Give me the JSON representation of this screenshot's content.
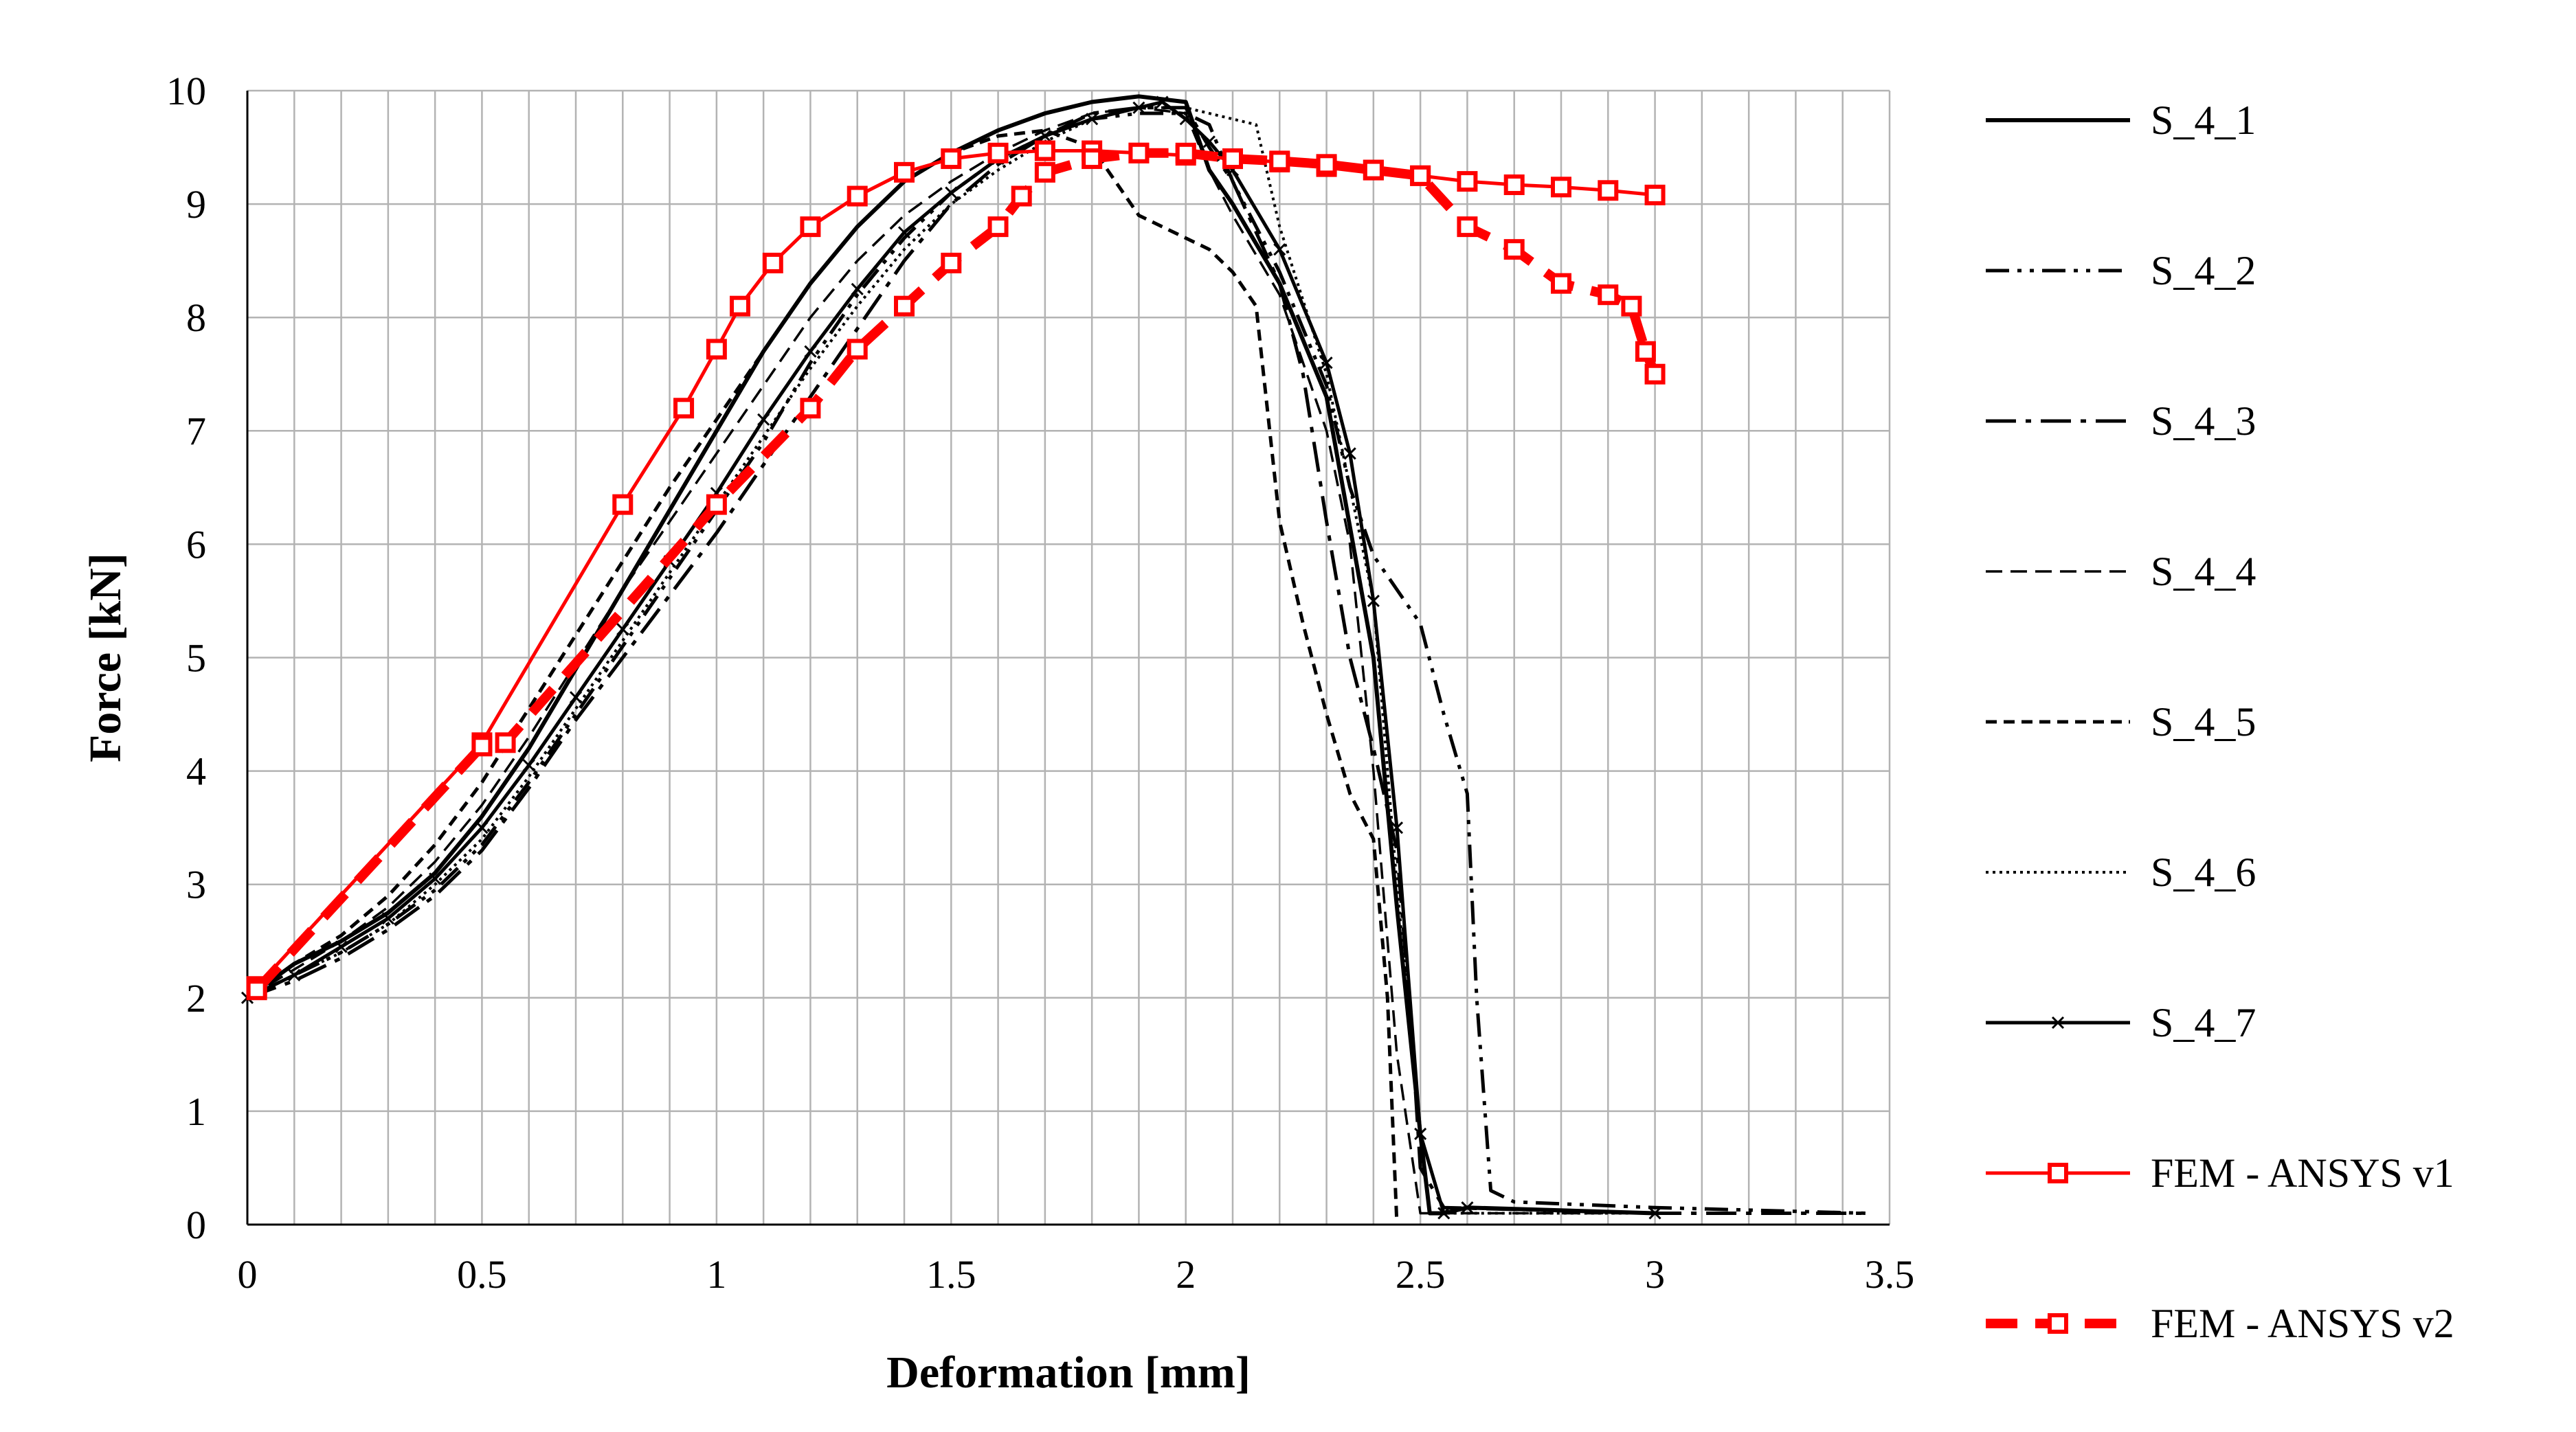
{
  "chart_data": {
    "type": "line",
    "title": "",
    "xlabel": "Deformation [mm]",
    "ylabel": "Force [kN]",
    "xlim": [
      0,
      3.5
    ],
    "ylim": [
      0,
      10
    ],
    "x_ticks": [
      0,
      0.5,
      1,
      1.5,
      2,
      2.5,
      3,
      3.5
    ],
    "x_tick_labels": [
      "0",
      "0.5",
      "1",
      "1.5",
      "2",
      "2.5",
      "3",
      "3.5"
    ],
    "y_ticks": [
      0,
      1,
      2,
      3,
      4,
      5,
      6,
      7,
      8,
      9,
      10
    ],
    "y_tick_labels": [
      "0",
      "1",
      "2",
      "3",
      "4",
      "5",
      "6",
      "7",
      "8",
      "9",
      "10"
    ],
    "grid": true,
    "minor_x_grid_step": 0.1,
    "legend_position": "right",
    "series": [
      {
        "name": "S_4_1",
        "color": "#000000",
        "style": "solid",
        "marker": "none",
        "x": [
          0,
          0.1,
          0.2,
          0.3,
          0.4,
          0.5,
          0.6,
          0.7,
          0.8,
          0.9,
          1.0,
          1.1,
          1.2,
          1.3,
          1.4,
          1.5,
          1.6,
          1.7,
          1.8,
          1.9,
          2.0,
          2.05,
          2.1,
          2.2,
          2.3,
          2.4,
          2.45,
          2.5,
          2.52,
          2.55,
          2.6,
          3.0
        ],
        "y": [
          2.0,
          2.3,
          2.5,
          2.75,
          3.1,
          3.6,
          4.2,
          4.9,
          5.6,
          6.3,
          7.0,
          7.7,
          8.3,
          8.8,
          9.2,
          9.45,
          9.65,
          9.8,
          9.9,
          9.95,
          9.9,
          9.3,
          9.0,
          8.3,
          7.3,
          5.0,
          2.8,
          0.8,
          0.1,
          0.1,
          0.15,
          0.1
        ]
      },
      {
        "name": "S_4_2",
        "color": "#000000",
        "style": "dash-dot-dot",
        "marker": "none",
        "x": [
          0,
          0.1,
          0.2,
          0.3,
          0.4,
          0.5,
          0.6,
          0.7,
          0.8,
          0.9,
          1.0,
          1.1,
          1.2,
          1.3,
          1.4,
          1.5,
          1.6,
          1.7,
          1.8,
          1.9,
          2.0,
          2.05,
          2.1,
          2.2,
          2.3,
          2.35,
          2.4,
          2.5,
          2.55,
          2.6,
          2.62,
          2.65,
          2.7,
          3.0,
          3.45
        ],
        "y": [
          2.0,
          2.2,
          2.4,
          2.65,
          2.95,
          3.35,
          3.9,
          4.5,
          5.1,
          5.7,
          6.3,
          6.9,
          7.6,
          8.2,
          8.7,
          9.1,
          9.4,
          9.6,
          9.75,
          9.8,
          9.8,
          9.7,
          9.2,
          8.4,
          7.4,
          6.5,
          5.9,
          5.3,
          4.5,
          3.8,
          2.0,
          0.3,
          0.2,
          0.15,
          0.1
        ]
      },
      {
        "name": "S_4_3",
        "color": "#000000",
        "style": "dash-dot",
        "marker": "none",
        "x": [
          0,
          0.1,
          0.2,
          0.3,
          0.4,
          0.5,
          0.6,
          0.7,
          0.8,
          0.9,
          1.0,
          1.1,
          1.2,
          1.3,
          1.4,
          1.5,
          1.6,
          1.7,
          1.8,
          1.9,
          2.0,
          2.05,
          2.1,
          2.2,
          2.25,
          2.3,
          2.35,
          2.4,
          2.45,
          2.48,
          2.5,
          2.55,
          3.0,
          3.45
        ],
        "y": [
          2.0,
          2.15,
          2.35,
          2.6,
          2.9,
          3.3,
          3.85,
          4.45,
          5.0,
          5.55,
          6.1,
          6.7,
          7.3,
          7.9,
          8.5,
          9.0,
          9.35,
          9.6,
          9.8,
          9.85,
          9.85,
          9.5,
          9.2,
          8.3,
          7.5,
          6.2,
          5.0,
          4.2,
          3.3,
          1.8,
          0.5,
          0.15,
          0.1,
          0.1
        ]
      },
      {
        "name": "S_4_4",
        "color": "#000000",
        "style": "dash",
        "marker": "none",
        "x": [
          0,
          0.1,
          0.2,
          0.3,
          0.4,
          0.5,
          0.6,
          0.7,
          0.8,
          0.9,
          1.0,
          1.1,
          1.2,
          1.3,
          1.4,
          1.5,
          1.6,
          1.7,
          1.8,
          1.9,
          2.0,
          2.05,
          2.1,
          2.2,
          2.3,
          2.35,
          2.4,
          2.45,
          2.5,
          3.0
        ],
        "y": [
          2.0,
          2.25,
          2.5,
          2.8,
          3.2,
          3.7,
          4.3,
          4.95,
          5.6,
          6.2,
          6.8,
          7.4,
          8.0,
          8.5,
          8.9,
          9.2,
          9.45,
          9.65,
          9.8,
          9.85,
          9.8,
          9.3,
          8.9,
          8.2,
          7.0,
          6.0,
          4.0,
          1.5,
          0.1,
          0.1
        ]
      },
      {
        "name": "S_4_5",
        "color": "#000000",
        "style": "short-dash",
        "marker": "none",
        "x": [
          0,
          0.1,
          0.2,
          0.3,
          0.4,
          0.5,
          0.6,
          0.7,
          0.8,
          0.9,
          1.0,
          1.1,
          1.2,
          1.3,
          1.4,
          1.5,
          1.6,
          1.7,
          1.8,
          1.85,
          1.9,
          2.0,
          2.05,
          2.1,
          2.15,
          2.2,
          2.25,
          2.3,
          2.35,
          2.4,
          2.43,
          2.45
        ],
        "y": [
          2.0,
          2.3,
          2.55,
          2.9,
          3.35,
          3.9,
          4.55,
          5.2,
          5.85,
          6.5,
          7.1,
          7.7,
          8.3,
          8.8,
          9.2,
          9.45,
          9.6,
          9.65,
          9.5,
          9.2,
          8.9,
          8.7,
          8.6,
          8.4,
          8.1,
          6.2,
          5.3,
          4.5,
          3.8,
          3.4,
          2.0,
          0.0
        ]
      },
      {
        "name": "S_4_6",
        "color": "#000000",
        "style": "dot",
        "marker": "none",
        "x": [
          0,
          0.1,
          0.2,
          0.3,
          0.4,
          0.5,
          0.6,
          0.7,
          0.8,
          0.9,
          1.0,
          1.1,
          1.2,
          1.3,
          1.4,
          1.5,
          1.6,
          1.7,
          1.8,
          1.9,
          2.0,
          2.1,
          2.15,
          2.2,
          2.3,
          2.4,
          2.45,
          2.5,
          2.55,
          3.0
        ],
        "y": [
          2.0,
          2.2,
          2.4,
          2.65,
          3.0,
          3.4,
          3.95,
          4.55,
          5.15,
          5.75,
          6.35,
          6.95,
          7.55,
          8.1,
          8.6,
          9.0,
          9.3,
          9.55,
          9.75,
          9.85,
          9.85,
          9.75,
          9.7,
          8.8,
          7.5,
          5.5,
          3.0,
          0.8,
          0.1,
          0.1
        ]
      },
      {
        "name": "S_4_7",
        "color": "#000000",
        "style": "solid-x",
        "marker": "x",
        "x": [
          0,
          0.1,
          0.2,
          0.3,
          0.4,
          0.5,
          0.6,
          0.7,
          0.8,
          0.9,
          1.0,
          1.1,
          1.2,
          1.3,
          1.4,
          1.5,
          1.6,
          1.7,
          1.8,
          1.9,
          1.95,
          2.0,
          2.05,
          2.1,
          2.2,
          2.3,
          2.35,
          2.4,
          2.45,
          2.5,
          2.55,
          2.6,
          3.0
        ],
        "y": [
          2.0,
          2.2,
          2.45,
          2.7,
          3.05,
          3.5,
          4.05,
          4.65,
          5.25,
          5.85,
          6.45,
          7.1,
          7.7,
          8.25,
          8.75,
          9.1,
          9.4,
          9.6,
          9.75,
          9.85,
          9.9,
          9.75,
          9.55,
          9.3,
          8.6,
          7.6,
          6.8,
          5.5,
          3.5,
          0.8,
          0.1,
          0.15,
          0.1
        ]
      },
      {
        "name": "FEM - ANSYS v1",
        "color": "#ff0000",
        "style": "solid",
        "marker": "square",
        "x": [
          0.02,
          0.5,
          0.8,
          0.93,
          1.0,
          1.05,
          1.12,
          1.2,
          1.3,
          1.4,
          1.5,
          1.6,
          1.7,
          1.8,
          1.9,
          2.0,
          2.1,
          2.2,
          2.3,
          2.4,
          2.5,
          2.6,
          2.7,
          2.8,
          2.9,
          3.0
        ],
        "y": [
          2.1,
          4.25,
          6.35,
          7.2,
          7.72,
          8.1,
          8.48,
          8.8,
          9.07,
          9.28,
          9.4,
          9.45,
          9.47,
          9.47,
          9.45,
          9.43,
          9.4,
          9.37,
          9.33,
          9.3,
          9.25,
          9.2,
          9.17,
          9.15,
          9.12,
          9.08
        ]
      },
      {
        "name": "FEM - ANSYS v2",
        "color": "#ff0000",
        "style": "thick-dash",
        "marker": "square",
        "x": [
          0.02,
          0.5,
          0.55,
          1.0,
          1.2,
          1.3,
          1.4,
          1.5,
          1.6,
          1.65,
          1.7,
          1.8,
          1.9,
          2.0,
          2.1,
          2.2,
          2.3,
          2.4,
          2.5,
          2.6,
          2.7,
          2.8,
          2.9,
          2.95,
          2.98,
          3.0
        ],
        "y": [
          2.07,
          4.22,
          4.25,
          6.35,
          7.2,
          7.72,
          8.1,
          8.48,
          8.8,
          9.07,
          9.28,
          9.4,
          9.45,
          9.45,
          9.4,
          9.38,
          9.35,
          9.3,
          9.25,
          8.8,
          8.6,
          8.3,
          8.2,
          8.1,
          7.7,
          7.5
        ]
      }
    ]
  }
}
